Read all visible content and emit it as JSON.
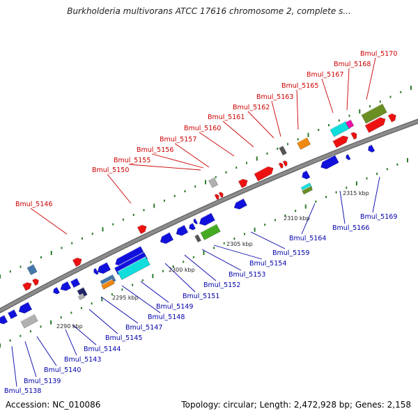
{
  "header": {
    "title": "Burkholderia multivorans ATCC 17616 chromosome 2, complete s..."
  },
  "footer": {
    "accession": "Accession: NC_010086",
    "summary": "Topology: circular; Length: 2,472,928 bp; Genes: 2,158"
  },
  "colors": {
    "forward_label": "#cc0000",
    "reverse_label": "#0000aa",
    "backbone": "#8c8c8c",
    "tick": "#2a7a2a",
    "red": "#ee1111",
    "blue": "#1111dd",
    "cyan": "#11dddd",
    "green": "#44aa22",
    "olive": "#6b8e23",
    "orange": "#ee8811",
    "magenta": "#ee11aa",
    "gray": "#b0b0b0",
    "steel": "#4477aa"
  },
  "scale": {
    "labels": [
      "2290 kbp",
      "2295 kbp",
      "2300 kbp",
      "2305 kbp",
      "2310 kbp",
      "2315 kbp"
    ]
  },
  "forward_labels": [
    "Bmul_5146",
    "Bmul_5150",
    "Bmul_5155",
    "Bmul_5156",
    "Bmul_5157",
    "Bmul_5160",
    "Bmul_5161",
    "Bmul_5162",
    "Bmul_5163",
    "Bmul_5165",
    "Bmul_5167",
    "Bmul_5168",
    "Bmul_5170"
  ],
  "reverse_labels": [
    "Bmul_5138",
    "Bmul_5139",
    "Bmul_5140",
    "Bmul_5143",
    "Bmul_5144",
    "Bmul_5145",
    "Bmul_5147",
    "Bmul_5148",
    "Bmul_5149",
    "Bmul_5151",
    "Bmul_5152",
    "Bmul_5153",
    "Bmul_5154",
    "Bmul_5159",
    "Bmul_5164",
    "Bmul_5166",
    "Bmul_5169"
  ]
}
